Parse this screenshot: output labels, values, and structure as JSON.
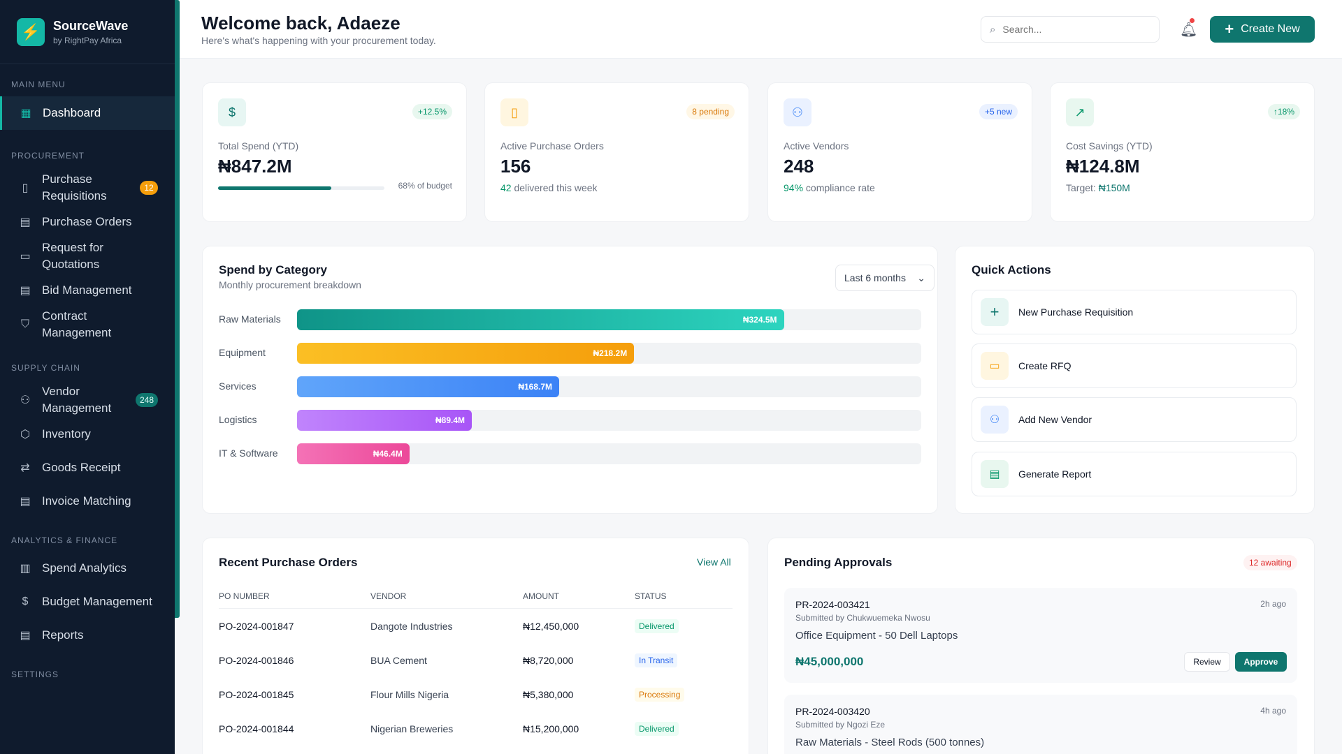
{
  "brand": {
    "name": "SourceWave",
    "sub": "by RightPay Africa"
  },
  "sidebar": {
    "sections": {
      "main": "MAIN MENU",
      "procurement": "PROCUREMENT",
      "supply": "SUPPLY CHAIN",
      "analytics": "ANALYTICS & FINANCE",
      "settings": "SETTINGS"
    },
    "items": [
      {
        "label": "Dashboard",
        "icon": "grid-icon"
      },
      {
        "label": "Purchase Requisitions",
        "icon": "clipboard-icon",
        "badge": "12"
      },
      {
        "label": "Purchase Orders",
        "icon": "document-icon"
      },
      {
        "label": "Request for Quotations",
        "icon": "calendar-icon"
      },
      {
        "label": "Bid Management",
        "icon": "clipboard-list-icon"
      },
      {
        "label": "Contract Management",
        "icon": "shield-icon"
      },
      {
        "label": "Vendor Management",
        "icon": "users-icon",
        "badge": "248"
      },
      {
        "label": "Inventory",
        "icon": "box-icon"
      },
      {
        "label": "Goods Receipt",
        "icon": "arrows-icon"
      },
      {
        "label": "Invoice Matching",
        "icon": "invoice-icon"
      },
      {
        "label": "Spend Analytics",
        "icon": "bar-chart-icon"
      },
      {
        "label": "Budget Management",
        "icon": "dollar-icon"
      },
      {
        "label": "Reports",
        "icon": "report-icon"
      }
    ]
  },
  "header": {
    "title": "Welcome back, Adaeze",
    "subtitle": "Here's what's happening with your procurement today.",
    "search_placeholder": "Search...",
    "create_label": "Create New"
  },
  "stats": [
    {
      "label": "Total Spend (YTD)",
      "value": "₦847.2M",
      "pill": "+12.5%",
      "progress": 0.68,
      "progress_label": "68% of budget",
      "icon": "dollar-circle-icon"
    },
    {
      "label": "Active Purchase Orders",
      "value": "156",
      "pill": "8 pending",
      "foot_strong": "42",
      "foot_rest": " delivered this week",
      "icon": "clipboard-icon"
    },
    {
      "label": "Active Vendors",
      "value": "248",
      "pill": "+5 new",
      "foot_strong": "94%",
      "foot_rest": " compliance rate",
      "icon": "users-icon"
    },
    {
      "label": "Cost Savings (YTD)",
      "value": "₦124.8M",
      "pill": "↑18%",
      "foot_rest": "Target: ",
      "foot_strong": "₦150M",
      "icon": "trend-up-icon"
    }
  ],
  "spend": {
    "title": "Spend by Category",
    "subtitle": "Monthly procurement breakdown",
    "range": "Last 6 months"
  },
  "chart_data": {
    "type": "bar",
    "categories": [
      "Raw Materials",
      "Equipment",
      "Services",
      "Logistics",
      "IT & Software"
    ],
    "values": [
      324.5,
      218.2,
      168.7,
      89.4,
      46.4
    ],
    "value_labels": [
      "₦324.5M",
      "₦218.2M",
      "₦168.7M",
      "₦89.4M",
      "₦46.4M"
    ],
    "fill_fraction": [
      0.78,
      0.54,
      0.42,
      0.28,
      0.18
    ],
    "colors": [
      "#0f9488",
      "#f59e0b",
      "#3b82f6",
      "#a855f7",
      "#ec4899"
    ]
  },
  "quick_actions": {
    "title": "Quick Actions",
    "items": [
      {
        "label": "New Purchase Requisition",
        "icon": "plus-icon"
      },
      {
        "label": "Create RFQ",
        "icon": "calendar-icon"
      },
      {
        "label": "Add New Vendor",
        "icon": "user-plus-icon"
      },
      {
        "label": "Generate Report",
        "icon": "report-icon"
      }
    ]
  },
  "recent_orders": {
    "title": "Recent Purchase Orders",
    "view_all": "View All",
    "columns": [
      "PO NUMBER",
      "VENDOR",
      "AMOUNT",
      "STATUS"
    ],
    "rows": [
      {
        "po": "PO-2024-001847",
        "vendor": "Dangote Industries",
        "amount": "₦12,450,000",
        "status": "Delivered"
      },
      {
        "po": "PO-2024-001846",
        "vendor": "BUA Cement",
        "amount": "₦8,720,000",
        "status": "In Transit"
      },
      {
        "po": "PO-2024-001845",
        "vendor": "Flour Mills Nigeria",
        "amount": "₦5,380,000",
        "status": "Processing"
      },
      {
        "po": "PO-2024-001844",
        "vendor": "Nigerian Breweries",
        "amount": "₦15,200,000",
        "status": "Delivered"
      }
    ]
  },
  "approvals": {
    "title": "Pending Approvals",
    "awaiting": "12 awaiting",
    "review_label": "Review",
    "approve_label": "Approve",
    "items": [
      {
        "id": "PR-2024-003421",
        "by": "Submitted by Chukwuemeka Nwosu",
        "desc": "Office Equipment - 50 Dell Laptops",
        "amount": "₦45,000,000",
        "time": "2h ago"
      },
      {
        "id": "PR-2024-003420",
        "by": "Submitted by Ngozi Eze",
        "desc": "Raw Materials - Steel Rods (500 tonnes)",
        "time": "4h ago"
      }
    ]
  }
}
